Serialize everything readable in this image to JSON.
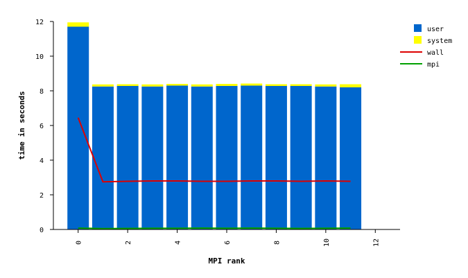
{
  "chart_data": {
    "type": "bar",
    "xlabel": "MPI rank",
    "ylabel": "time in seconds",
    "xlim": [
      -1,
      13
    ],
    "ylim": [
      0,
      12
    ],
    "xticks": [
      0,
      2,
      4,
      6,
      8,
      10,
      12
    ],
    "yticks": [
      0,
      2,
      4,
      6,
      8,
      10,
      12
    ],
    "legend_position": "top-right",
    "x": [
      0,
      1,
      2,
      3,
      4,
      5,
      6,
      7,
      8,
      9,
      10,
      11
    ],
    "stacked_series": [
      {
        "name": "user",
        "color": "#0066cc",
        "values": [
          11.7,
          8.25,
          8.28,
          8.25,
          8.3,
          8.25,
          8.28,
          8.3,
          8.28,
          8.28,
          8.25,
          8.2
        ]
      },
      {
        "name": "system",
        "color": "#ffff00",
        "values": [
          0.25,
          0.12,
          0.1,
          0.12,
          0.1,
          0.12,
          0.12,
          0.12,
          0.1,
          0.1,
          0.12,
          0.18
        ]
      }
    ],
    "line_series": [
      {
        "name": "wall",
        "color": "#dd0000",
        "values": [
          6.45,
          2.75,
          2.78,
          2.8,
          2.8,
          2.78,
          2.78,
          2.8,
          2.8,
          2.78,
          2.8,
          2.78
        ]
      },
      {
        "name": "mpi",
        "color": "#00a000",
        "values": [
          0.08,
          0.05,
          0.06,
          0.07,
          0.07,
          0.08,
          0.07,
          0.08,
          0.07,
          0.06,
          0.07,
          0.08
        ]
      }
    ]
  }
}
